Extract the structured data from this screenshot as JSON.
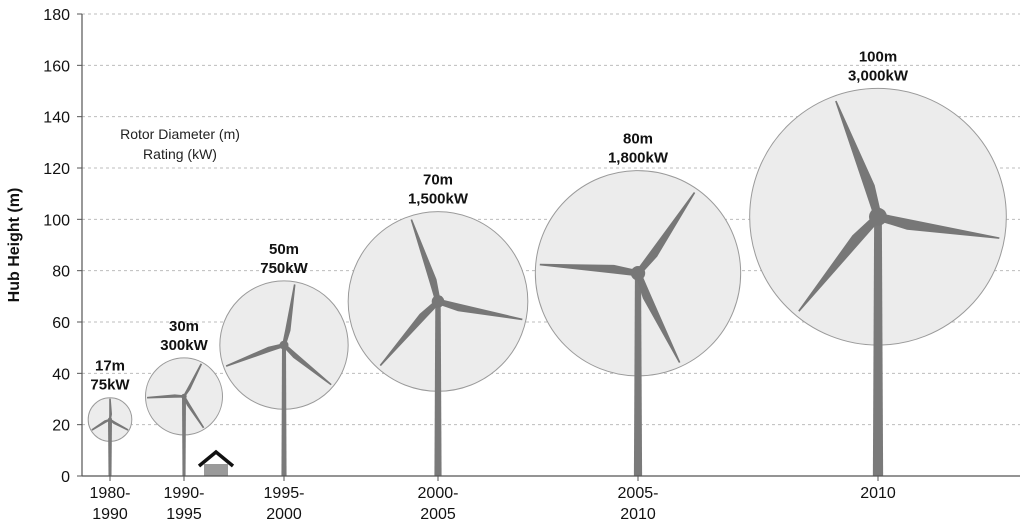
{
  "chart_data": {
    "type": "scatter",
    "title": "",
    "xlabel": "",
    "ylabel": "Hub Height (m)",
    "ylim": [
      0,
      180
    ],
    "yticks": [
      0,
      20,
      40,
      60,
      80,
      100,
      120,
      140,
      160,
      180
    ],
    "grid": true,
    "legend": {
      "lines": [
        "Rotor Diameter (m)",
        "Rating (kW)"
      ],
      "placement": "top-left"
    },
    "categories": [
      [
        "1980-",
        "1990"
      ],
      [
        "1990-",
        "1995"
      ],
      [
        "1995-",
        "2000"
      ],
      [
        "2000-",
        "2005"
      ],
      [
        "2005-",
        "2010"
      ],
      [
        "2010"
      ]
    ],
    "turbines": [
      {
        "category_index": 0,
        "hub_height": 22,
        "rotor_diameter": 17,
        "rotor_label": "17m",
        "rating_label": "75kW",
        "rotation": 0
      },
      {
        "category_index": 1,
        "hub_height": 31,
        "rotor_diameter": 30,
        "rotor_label": "30m",
        "rating_label": "300kW",
        "rotation": 28
      },
      {
        "category_index": 2,
        "hub_height": 51,
        "rotor_diameter": 50,
        "rotor_label": "50m",
        "rating_label": "750kW",
        "rotation": 10
      },
      {
        "category_index": 3,
        "hub_height": 68,
        "rotor_diameter": 70,
        "rotor_label": "70m",
        "rating_label": "1,500kW",
        "rotation": -18
      },
      {
        "category_index": 4,
        "hub_height": 79,
        "rotor_diameter": 80,
        "rotor_label": "80m",
        "rating_label": "1,800kW",
        "rotation": 35
      },
      {
        "category_index": 5,
        "hub_height": 101,
        "rotor_diameter": 100,
        "rotor_label": "100m",
        "rating_label": "3,000kW",
        "rotation": -20
      }
    ],
    "houses": [
      {
        "x_position": 1.32,
        "icon": "house-icon"
      },
      {
        "x_position": 5.74,
        "icon": "house-icon"
      }
    ],
    "colors": {
      "rotor_fill": "#ececec",
      "rotor_stroke": "#9a9a9a",
      "tower": "#7a7a7a",
      "blade": "#777777"
    }
  }
}
